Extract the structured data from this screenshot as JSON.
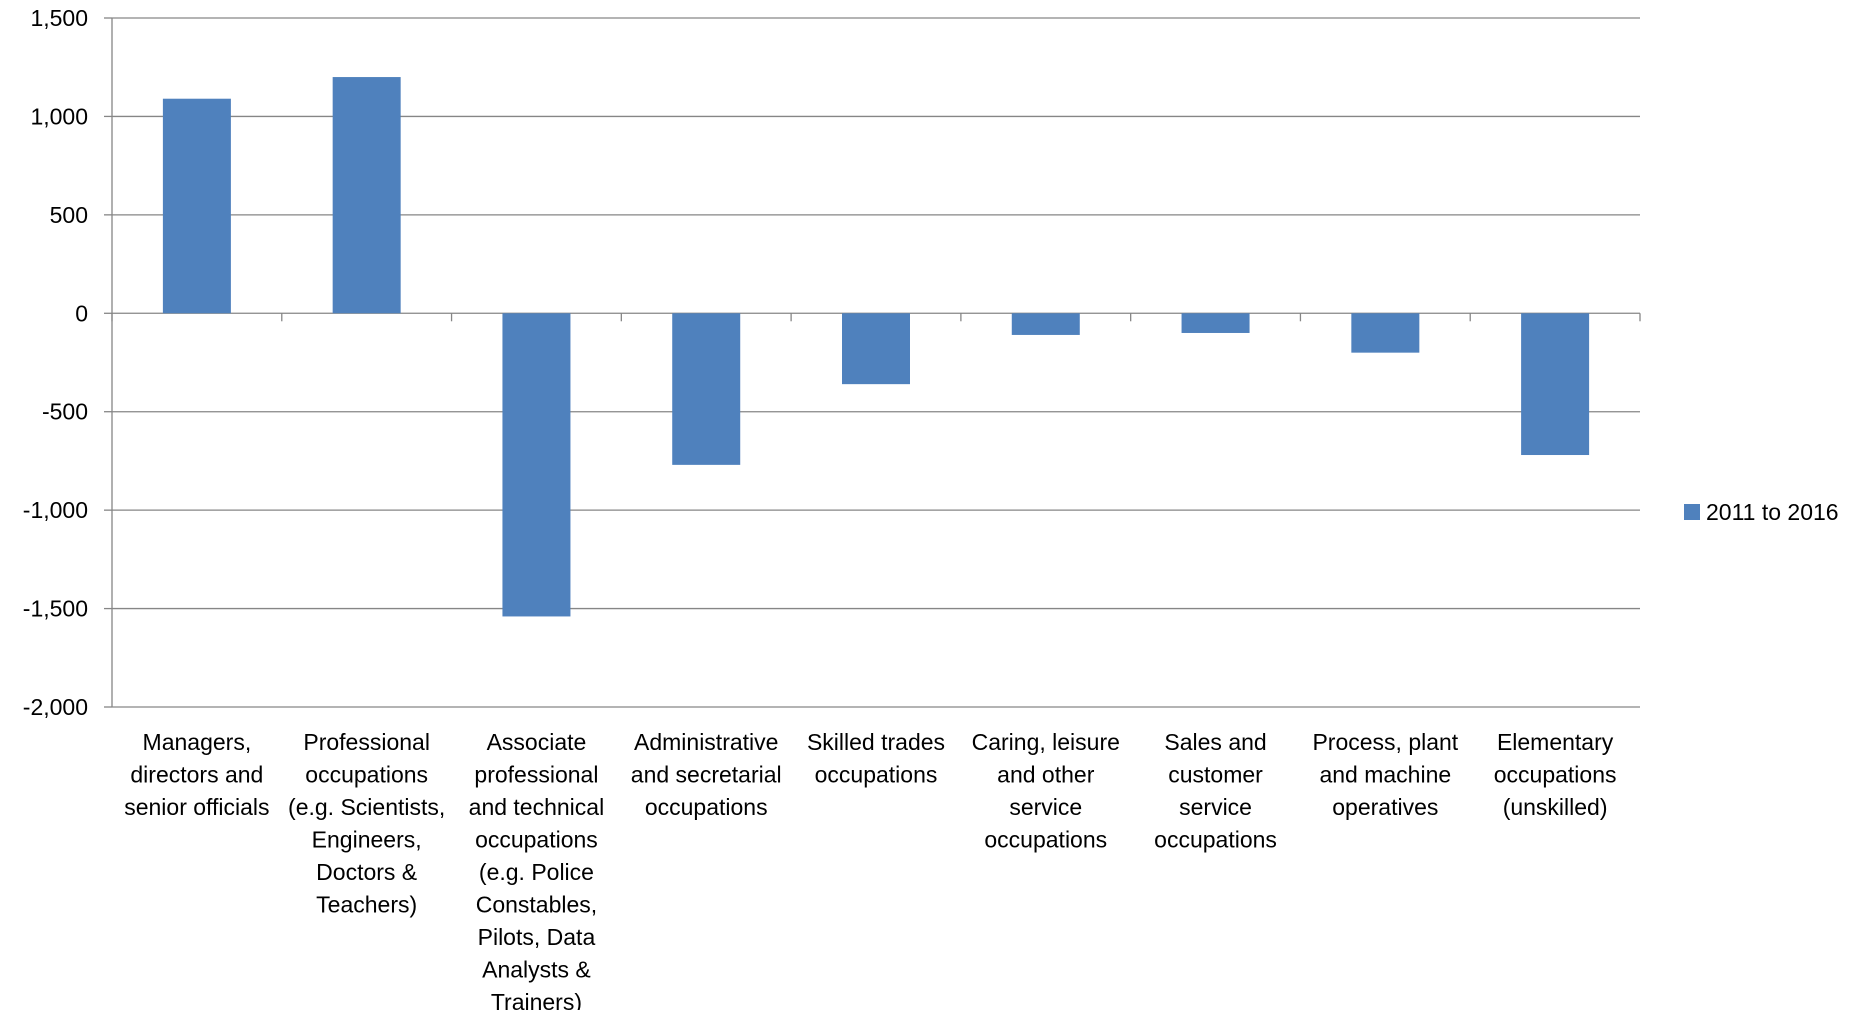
{
  "chart_data": {
    "type": "bar",
    "title": "",
    "xlabel": "",
    "ylabel": "",
    "ylim": [
      -2000,
      1500
    ],
    "yticks": [
      1500,
      1000,
      500,
      0,
      -500,
      -1000,
      -1500,
      -2000
    ],
    "ytick_labels": [
      "1,500",
      "1,000",
      "500",
      "0",
      "-500",
      "-1,000",
      "-1,500",
      "-2,000"
    ],
    "grid": true,
    "legend_position": "right",
    "categories": [
      [
        "Managers,",
        "directors and",
        "senior officials"
      ],
      [
        "Professional",
        "occupations",
        "(e.g. Scientists,",
        "Engineers,",
        "Doctors &",
        "Teachers)"
      ],
      [
        "Associate",
        "professional",
        "and technical",
        "occupations",
        "(e.g. Police",
        "Constables,",
        "Pilots,  Data",
        "Analysts &",
        "Trainers)"
      ],
      [
        "Administrative",
        "and secretarial",
        "occupations"
      ],
      [
        "Skilled trades",
        "occupations"
      ],
      [
        "Caring, leisure",
        "and other",
        "service",
        "occupations"
      ],
      [
        "Sales and",
        "customer",
        "service",
        "occupations"
      ],
      [
        "Process, plant",
        "and machine",
        "operatives"
      ],
      [
        "Elementary",
        "occupations",
        "(unskilled)"
      ]
    ],
    "series": [
      {
        "name": "2011 to 2016",
        "color": "#4f81bd",
        "values": [
          1090,
          1200,
          -1540,
          -770,
          -360,
          -110,
          -100,
          -200,
          -720
        ]
      }
    ]
  }
}
